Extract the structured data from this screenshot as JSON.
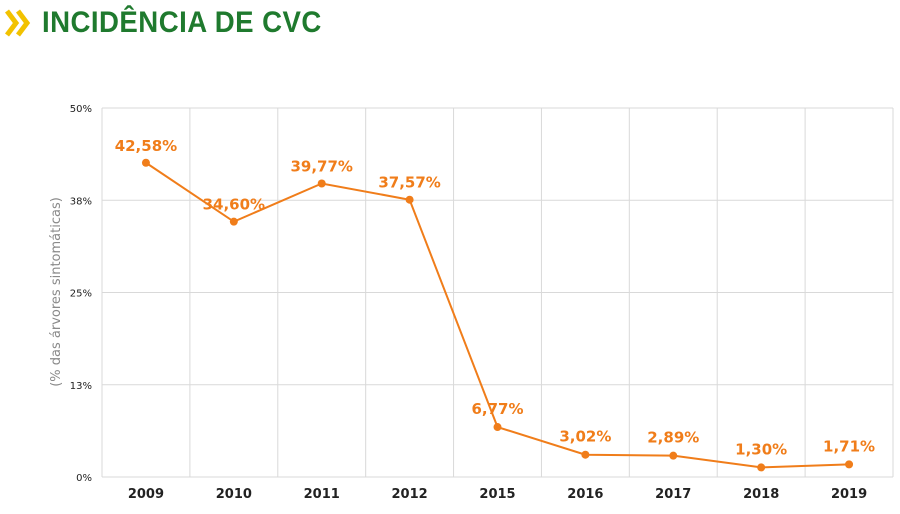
{
  "header": {
    "title": "INCIDÊNCIA DE CVC",
    "title_color": "#1f7a2e",
    "icon": "double-chevron-right-icon",
    "icon_color": "#f2c200"
  },
  "chart_data": {
    "type": "line",
    "title": "INCIDÊNCIA DE CVC",
    "xlabel": "",
    "ylabel": "(% das árvores sintomáticas)",
    "categories": [
      "2009",
      "2010",
      "2011",
      "2012",
      "2015",
      "2016",
      "2017",
      "2018",
      "2019"
    ],
    "series": [
      {
        "values": [
          42.58,
          34.6,
          39.77,
          37.57,
          6.77,
          3.02,
          2.89,
          1.3,
          1.71
        ],
        "data_labels": [
          "42,58%",
          "34,60%",
          "39,77%",
          "37,57%",
          "6,77%",
          "3,02%",
          "2,89%",
          "1,30%",
          "1,71%"
        ],
        "color": "#f07d1a"
      }
    ],
    "ylim": [
      0,
      50
    ],
    "yticks": [
      {
        "value": 0,
        "label": "0%"
      },
      {
        "value": 12.5,
        "label": "13%"
      },
      {
        "value": 25,
        "label": "25%"
      },
      {
        "value": 37.5,
        "label": "38%"
      },
      {
        "value": 50,
        "label": "50%"
      }
    ],
    "grid": true,
    "legend": "none",
    "grid_color": "#d9d9d9"
  }
}
